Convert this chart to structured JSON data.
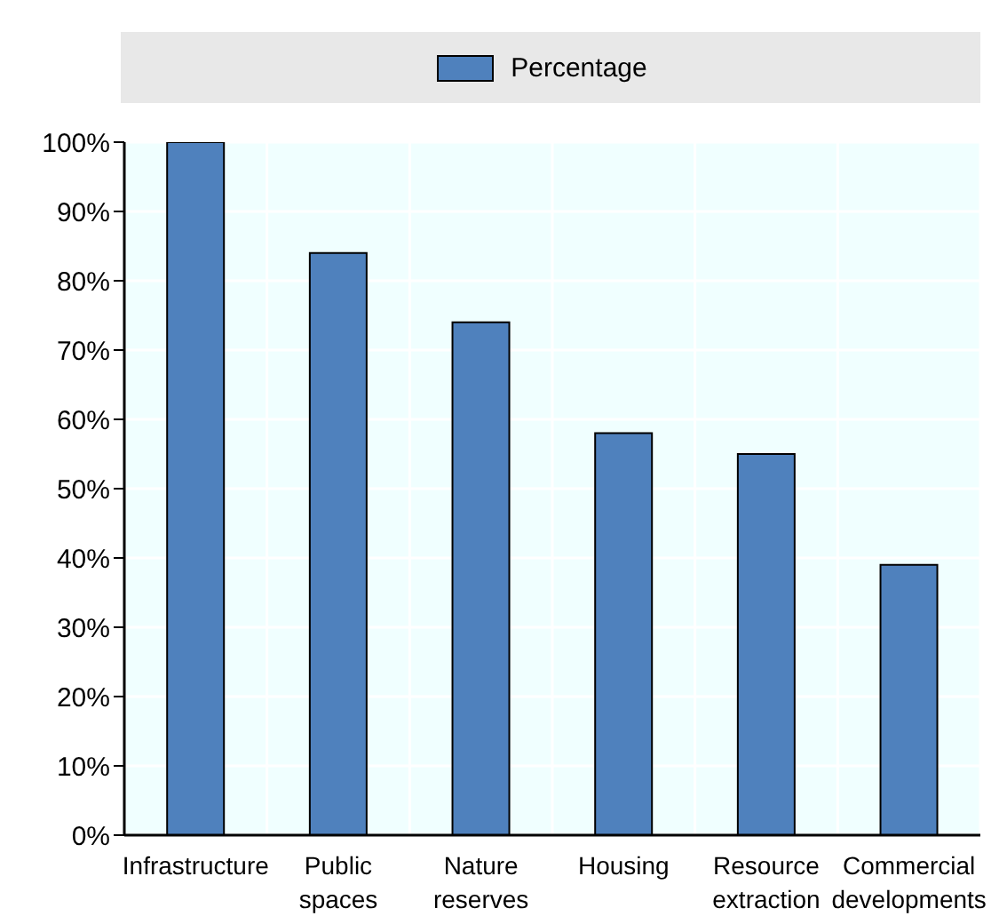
{
  "chart_data": {
    "type": "bar",
    "categories": [
      "Infrastructure",
      "Public spaces",
      "Nature reserves",
      "Housing",
      "Resource extraction",
      "Commercial developments"
    ],
    "series": [
      {
        "name": "Percentage",
        "color": "#4f81bd",
        "values": [
          100,
          84,
          74,
          58,
          55,
          39
        ]
      }
    ],
    "ylim": [
      0,
      100
    ],
    "yticks": [
      {
        "value": 0,
        "label": "0%"
      },
      {
        "value": 10,
        "label": "10%"
      },
      {
        "value": 20,
        "label": "20%"
      },
      {
        "value": 30,
        "label": "30%"
      },
      {
        "value": 40,
        "label": "40%"
      },
      {
        "value": 50,
        "label": "50%"
      },
      {
        "value": 60,
        "label": "60%"
      },
      {
        "value": 70,
        "label": "70%"
      },
      {
        "value": 80,
        "label": "80%"
      },
      {
        "value": 90,
        "label": "90%"
      },
      {
        "value": 100,
        "label": "100%"
      }
    ],
    "grid": true,
    "legend": "top"
  }
}
